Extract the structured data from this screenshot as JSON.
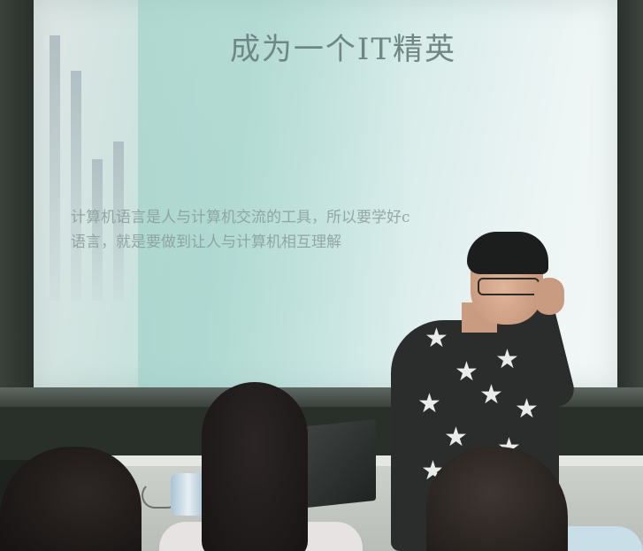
{
  "photo": {
    "subject": "classroom presentation",
    "slide": {
      "title": "成为一个IT精英",
      "body_lines": [
        "计算机语言是人与计算机交流的工具，所以要学好c",
        "语言，就是要做到让人与计算机相互理解"
      ]
    },
    "shirt_pattern_icon": "star-icon"
  }
}
